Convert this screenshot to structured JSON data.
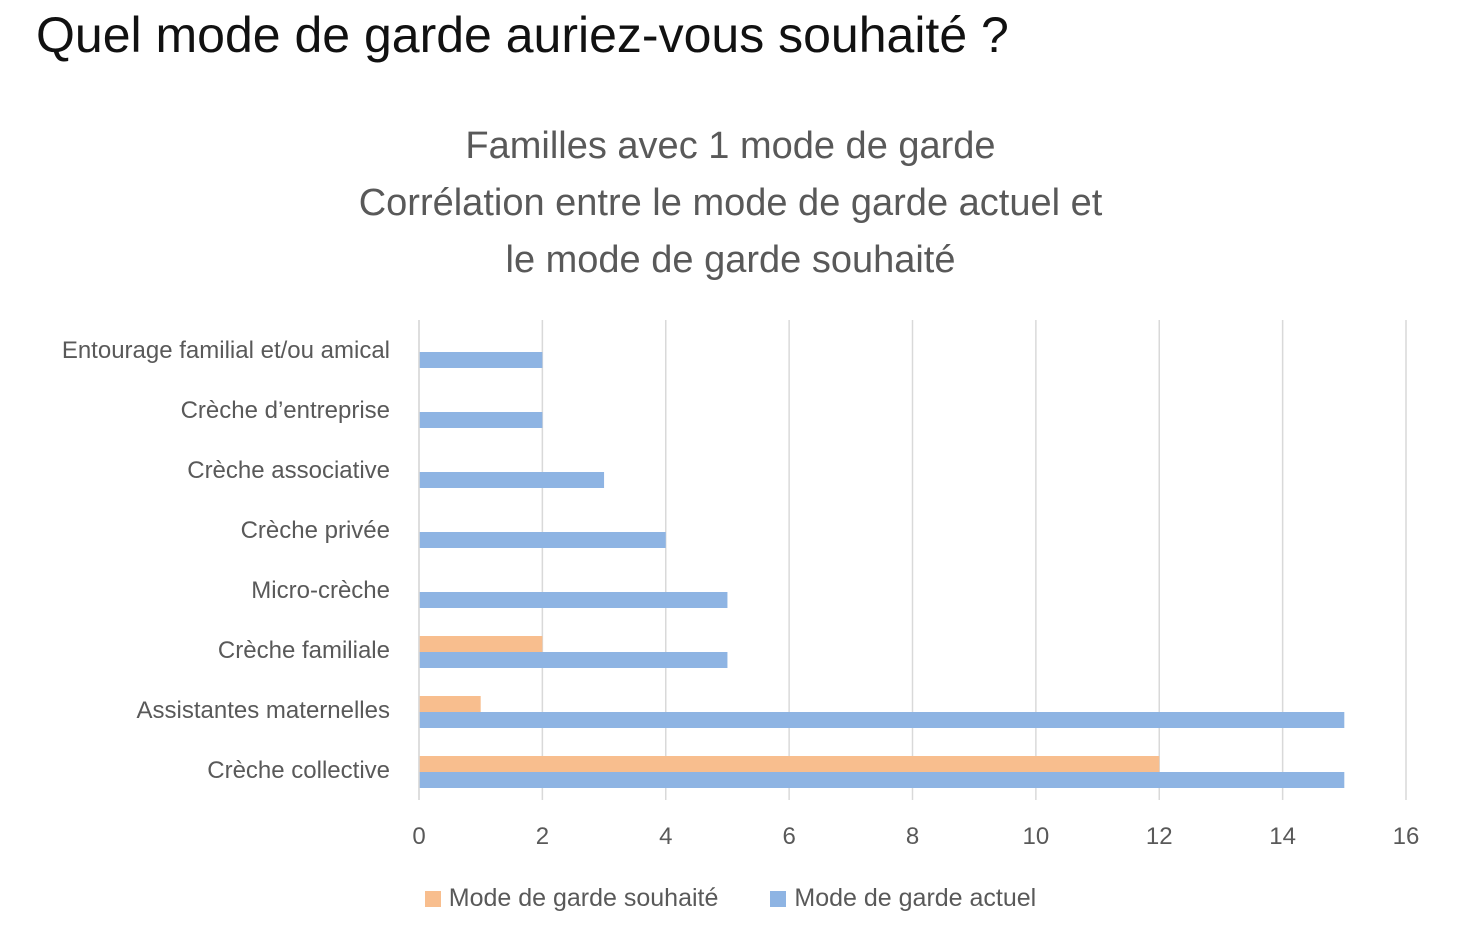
{
  "page": {
    "heading": "Quel mode de garde auriez-vous souhaité ?"
  },
  "chart_data": {
    "type": "bar",
    "orientation": "horizontal",
    "title_lines": [
      "Familles avec 1 mode de garde",
      "Corrélation entre le mode de garde actuel et",
      "le mode de garde souhaité"
    ],
    "categories": [
      "Entourage familial et/ou amical",
      "Crèche d’entreprise",
      "Crèche associative",
      "Crèche privée",
      "Micro-crèche",
      "Crèche familiale",
      "Assistantes maternelles",
      "Crèche collective"
    ],
    "series": [
      {
        "name": "Mode de garde souhaité",
        "color": "#F8BE8E",
        "values": [
          0,
          0,
          0,
          0,
          0,
          2,
          1,
          12
        ]
      },
      {
        "name": "Mode de garde actuel",
        "color": "#8EB4E3",
        "values": [
          2,
          2,
          3,
          4,
          5,
          5,
          15,
          15
        ]
      }
    ],
    "xlim": [
      0,
      16
    ],
    "xticks": [
      0,
      2,
      4,
      6,
      8,
      10,
      12,
      14,
      16
    ],
    "grid": "vertical",
    "legend_position": "bottom"
  }
}
